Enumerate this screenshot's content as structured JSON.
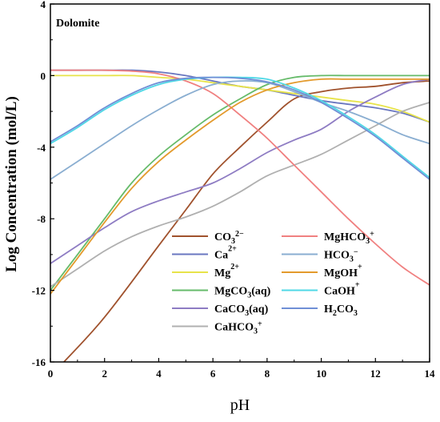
{
  "chart_data": {
    "type": "line",
    "panel_label": "Dolomite",
    "xlabel": "pH",
    "ylabel": "Log Concentration (mol/L)",
    "xlim": [
      0,
      14
    ],
    "ylim": [
      -16,
      4
    ],
    "xticks": [
      0,
      2,
      4,
      6,
      8,
      10,
      12,
      14
    ],
    "yticks": [
      -16,
      -12,
      -8,
      -4,
      0,
      4
    ],
    "legend_position": "bottom-center",
    "series": [
      {
        "name": "CO3 2-",
        "label_main": "CO",
        "label_sub": "3",
        "label_sup": "2−",
        "color": "#a0522d",
        "x": [
          0.5,
          2,
          4,
          5,
          6,
          7,
          8,
          9,
          10,
          11,
          12,
          13,
          14
        ],
        "y": [
          -16,
          -13.5,
          -9.5,
          -7.5,
          -5.5,
          -4,
          -2.6,
          -1.3,
          -0.9,
          -0.7,
          -0.6,
          -0.4,
          -0.3
        ]
      },
      {
        "name": "Ca2+",
        "label_main": "Ca",
        "label_sub": "",
        "label_sup": "2+",
        "color": "#6a77c0",
        "x": [
          0,
          1,
          2,
          3,
          4,
          5,
          6,
          7,
          8,
          9,
          10,
          11,
          12,
          13,
          14
        ],
        "y": [
          0.3,
          0.3,
          0.3,
          0.3,
          0.2,
          0.0,
          -0.3,
          -0.6,
          -0.8,
          -1.1,
          -1.4,
          -1.6,
          -1.8,
          -2.1,
          -2.6
        ]
      },
      {
        "name": "Mg2+",
        "label_main": "Mg",
        "label_sub": "",
        "label_sup": "2+",
        "color": "#e7e34a",
        "x": [
          0,
          1,
          2,
          3,
          4,
          5,
          6,
          7,
          8,
          9,
          10,
          11,
          12,
          13,
          14
        ],
        "y": [
          0.0,
          0.0,
          0.0,
          0.0,
          -0.1,
          -0.2,
          -0.4,
          -0.6,
          -0.8,
          -1.0,
          -1.2,
          -1.4,
          -1.6,
          -2.0,
          -2.6
        ]
      },
      {
        "name": "MgCO3(aq)",
        "label_main": "MgCO",
        "label_sub": "3",
        "label_sup": "",
        "label_tail": "(aq)",
        "color": "#66bb6a",
        "x": [
          0,
          1,
          2,
          3,
          4,
          5,
          6,
          7,
          8,
          9,
          10,
          11,
          12,
          13,
          14
        ],
        "y": [
          -12,
          -10,
          -8,
          -6,
          -4.5,
          -3.3,
          -2.2,
          -1.3,
          -0.5,
          -0.1,
          0.0,
          0.0,
          0.0,
          0.0,
          0.0
        ]
      },
      {
        "name": "CaCO3(aq)",
        "label_main": "CaCO",
        "label_sub": "3",
        "label_sup": "",
        "label_tail": "(aq)",
        "color": "#8e7cc3",
        "x": [
          0,
          1,
          2,
          3,
          4,
          5,
          6,
          7,
          8,
          9,
          10,
          11,
          12,
          13,
          14
        ],
        "y": [
          -10.5,
          -9.5,
          -8.5,
          -7.6,
          -7.0,
          -6.5,
          -6.0,
          -5.2,
          -4.3,
          -3.6,
          -3.0,
          -2.0,
          -1.2,
          -0.5,
          -0.2
        ]
      },
      {
        "name": "CaHCO3+",
        "label_main": "CaHCO",
        "label_sub": "3",
        "label_sup": "+",
        "color": "#b0b0b0",
        "x": [
          0,
          1,
          2,
          3,
          4,
          5,
          6,
          7,
          8,
          9,
          10,
          11,
          12,
          13,
          14
        ],
        "y": [
          -11.8,
          -10.8,
          -9.8,
          -9.0,
          -8.4,
          -7.9,
          -7.3,
          -6.5,
          -5.6,
          -5.0,
          -4.4,
          -3.6,
          -2.8,
          -2.0,
          -1.5
        ]
      },
      {
        "name": "MgHCO3+",
        "label_main": "MgHCO",
        "label_sub": "3",
        "label_sup": "+",
        "color": "#f08080",
        "x": [
          0,
          1,
          2,
          3,
          4,
          5,
          6,
          7,
          8,
          9,
          10,
          11,
          12,
          13,
          14
        ],
        "y": [
          0.3,
          0.3,
          0.3,
          0.25,
          0.1,
          -0.3,
          -1.0,
          -2.2,
          -3.5,
          -5.0,
          -6.5,
          -8.0,
          -9.4,
          -10.7,
          -11.7
        ]
      },
      {
        "name": "HCO3-",
        "label_main": "HCO",
        "label_sub": "3",
        "label_sup": "−",
        "color": "#8aaed1",
        "x": [
          0,
          1,
          2,
          3,
          4,
          5,
          6,
          7,
          8,
          9,
          10,
          11,
          12,
          13,
          14
        ],
        "y": [
          -5.8,
          -4.8,
          -3.8,
          -2.8,
          -1.9,
          -1.1,
          -0.5,
          -0.3,
          -0.4,
          -0.9,
          -1.5,
          -2.0,
          -2.6,
          -3.3,
          -3.8
        ]
      },
      {
        "name": "MgOH+",
        "label_main": "MgOH",
        "label_sub": "",
        "label_sup": "+",
        "color": "#e39a2c",
        "x": [
          0,
          1,
          2,
          3,
          4,
          5,
          6,
          7,
          8,
          9,
          10,
          11,
          12,
          13,
          14
        ],
        "y": [
          -12.2,
          -10.2,
          -8.2,
          -6.3,
          -4.8,
          -3.6,
          -2.5,
          -1.5,
          -0.8,
          -0.4,
          -0.2,
          -0.2,
          -0.2,
          -0.2,
          -0.2
        ]
      },
      {
        "name": "CaOH+",
        "label_main": "CaOH",
        "label_sub": "",
        "label_sup": "+",
        "color": "#4fd8e6",
        "x": [
          0,
          1,
          2,
          3,
          4,
          5,
          6,
          7,
          8,
          9,
          10,
          11,
          12,
          13,
          14
        ],
        "y": [
          -3.8,
          -2.9,
          -1.9,
          -1.1,
          -0.5,
          -0.2,
          -0.1,
          -0.1,
          -0.2,
          -0.7,
          -1.4,
          -2.3,
          -3.3,
          -4.5,
          -5.7
        ]
      },
      {
        "name": "H2CO3",
        "label_main": "H",
        "label_sub": "2",
        "label_sup": "",
        "label_tail": "CO",
        "label_sub2": "3",
        "color": "#6f8fd6",
        "x": [
          0,
          1,
          2,
          3,
          4,
          5,
          6,
          7,
          8,
          9,
          10,
          11,
          12,
          13,
          14
        ],
        "y": [
          -3.7,
          -2.8,
          -1.8,
          -1.0,
          -0.4,
          -0.15,
          -0.1,
          -0.15,
          -0.35,
          -0.8,
          -1.5,
          -2.4,
          -3.4,
          -4.6,
          -5.8
        ]
      }
    ],
    "legend_left": [
      "CO3 2-",
      "Ca2+",
      "Mg2+",
      "MgCO3(aq)",
      "CaCO3(aq)",
      "CaHCO3+"
    ],
    "legend_right": [
      "MgHCO3+",
      "HCO3-",
      "MgOH+",
      "CaOH+",
      "H2CO3"
    ]
  }
}
